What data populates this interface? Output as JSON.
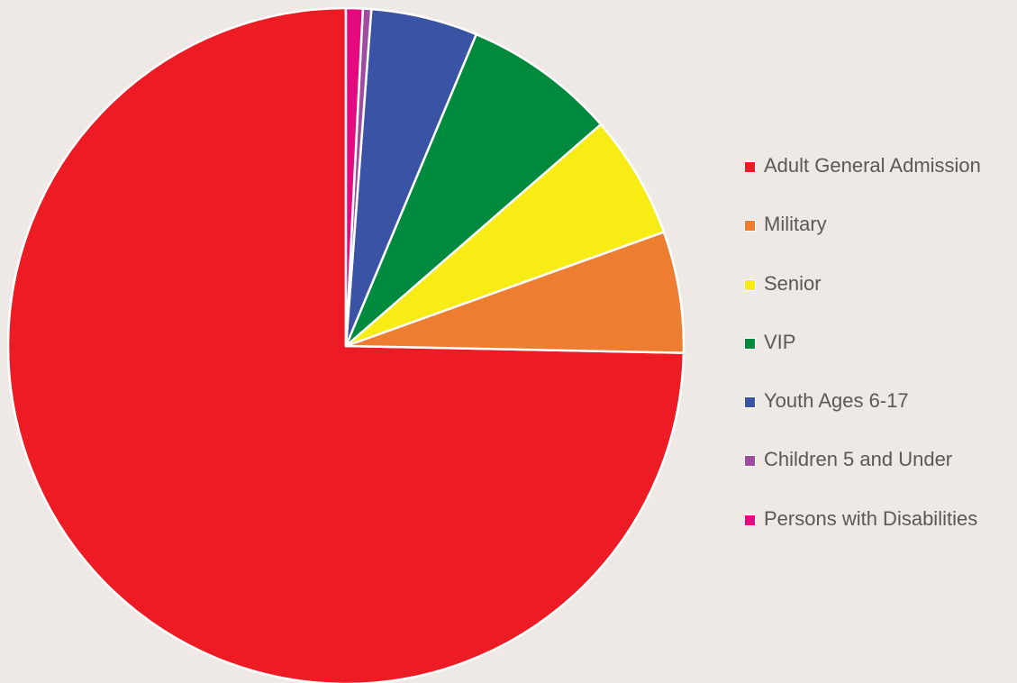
{
  "chart_data": {
    "type": "pie",
    "title": "",
    "legend_position": "right",
    "start": "top",
    "direction": "counterclockwise",
    "slices": [
      {
        "label": "Adult General Admission",
        "value": 74.6,
        "color": "#ed1c24"
      },
      {
        "label": "Military",
        "value": 5.8,
        "color": "#ed7d31"
      },
      {
        "label": "Senior",
        "value": 5.9,
        "color": "#f7ec13"
      },
      {
        "label": "VIP",
        "value": 7.3,
        "color": "#008a3e"
      },
      {
        "label": "Youth Ages 6-17",
        "value": 5.1,
        "color": "#3a53a4"
      },
      {
        "label": "Children 5 and Under",
        "value": 0.4,
        "color": "#9e4ba0"
      },
      {
        "label": "Persons with Disabilities",
        "value": 0.8,
        "color": "#e5097f"
      }
    ]
  }
}
